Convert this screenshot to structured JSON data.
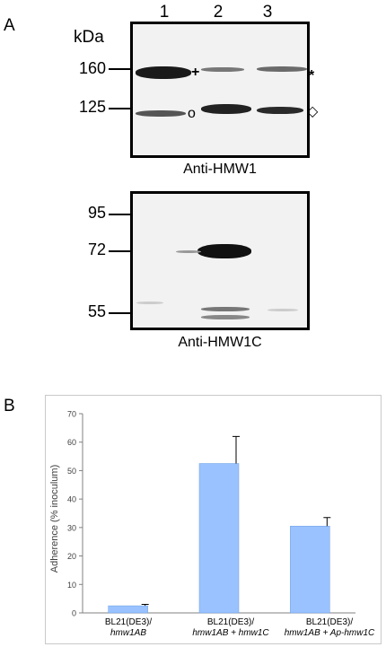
{
  "panels": {
    "A": "A",
    "B": "B"
  },
  "blot1": {
    "unit": "kDa",
    "lanes": [
      "1",
      "2",
      "3"
    ],
    "markers": [
      "160",
      "125"
    ],
    "caption": "Anti-HMW1",
    "symbols": {
      "plus": "+",
      "circle": "o",
      "star": "*",
      "open_diamond": "◇"
    }
  },
  "blot2": {
    "markers": [
      "95",
      "72",
      "55"
    ],
    "caption": "Anti-HMW1C"
  },
  "chart_data": {
    "type": "bar",
    "categories": [
      [
        "BL21(DE3)/",
        "hmw1AB"
      ],
      [
        "BL21(DE3)/",
        "hmw1AB + hmw1C"
      ],
      [
        "BL21(DE3)/",
        "hmw1AB + Ap-hmw1C"
      ]
    ],
    "values": [
      2.5,
      52.5,
      30.5
    ],
    "errors": [
      0.5,
      9.5,
      3
    ],
    "ylabel": "Adherence (% inoculum)",
    "ylim": [
      0,
      70
    ],
    "yticks": [
      "0",
      "10",
      "20",
      "30",
      "40",
      "50",
      "60",
      "70"
    ],
    "bar_color": "#99c2ff",
    "bar_edge_color": "#6a9fe0"
  }
}
